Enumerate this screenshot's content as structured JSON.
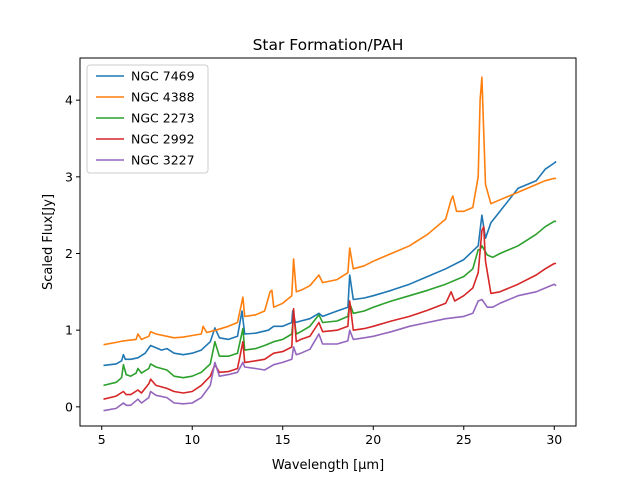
{
  "chart_data": {
    "type": "line",
    "title": "Star Formation/PAH",
    "xlabel": "Wavelength [μm]",
    "ylabel": "Scaled Flux[Jy]",
    "xlim": [
      3.8,
      31.2
    ],
    "ylim": [
      -0.25,
      4.55
    ],
    "xticks": [
      5,
      10,
      15,
      20,
      25,
      30
    ],
    "yticks": [
      0,
      1,
      2,
      3,
      4
    ],
    "grid": false,
    "legend_position": "top-left",
    "series": [
      {
        "name": "NGC 7469",
        "color": "#1f77b4",
        "points": [
          [
            5.1,
            0.54
          ],
          [
            5.8,
            0.56
          ],
          [
            6.1,
            0.6
          ],
          [
            6.2,
            0.68
          ],
          [
            6.3,
            0.62
          ],
          [
            6.6,
            0.62
          ],
          [
            7.0,
            0.64
          ],
          [
            7.4,
            0.7
          ],
          [
            7.7,
            0.8
          ],
          [
            7.9,
            0.78
          ],
          [
            8.3,
            0.74
          ],
          [
            8.6,
            0.76
          ],
          [
            9.0,
            0.7
          ],
          [
            9.5,
            0.68
          ],
          [
            10.0,
            0.7
          ],
          [
            10.5,
            0.74
          ],
          [
            11.0,
            0.85
          ],
          [
            11.25,
            1.03
          ],
          [
            11.5,
            0.9
          ],
          [
            12.0,
            0.88
          ],
          [
            12.5,
            0.92
          ],
          [
            12.75,
            1.25
          ],
          [
            12.9,
            0.95
          ],
          [
            13.5,
            0.96
          ],
          [
            14.2,
            1.0
          ],
          [
            14.5,
            1.05
          ],
          [
            15.0,
            1.05
          ],
          [
            15.5,
            1.1
          ],
          [
            15.55,
            1.25
          ],
          [
            15.7,
            1.1
          ],
          [
            16.0,
            1.12
          ],
          [
            16.5,
            1.15
          ],
          [
            17.0,
            1.22
          ],
          [
            17.2,
            1.18
          ],
          [
            18.0,
            1.25
          ],
          [
            18.6,
            1.3
          ],
          [
            18.7,
            1.72
          ],
          [
            18.9,
            1.4
          ],
          [
            19.5,
            1.42
          ],
          [
            20.0,
            1.45
          ],
          [
            21.0,
            1.52
          ],
          [
            22.0,
            1.6
          ],
          [
            23.0,
            1.7
          ],
          [
            24.0,
            1.8
          ],
          [
            25.0,
            1.92
          ],
          [
            25.8,
            2.1
          ],
          [
            26.0,
            2.5
          ],
          [
            26.2,
            2.2
          ],
          [
            26.5,
            2.4
          ],
          [
            27.0,
            2.55
          ],
          [
            28.0,
            2.85
          ],
          [
            29.0,
            2.95
          ],
          [
            29.5,
            3.1
          ],
          [
            30.0,
            3.18
          ],
          [
            30.1,
            3.2
          ]
        ]
      },
      {
        "name": "NGC 4388",
        "color": "#ff7f0e",
        "points": [
          [
            5.1,
            0.81
          ],
          [
            5.8,
            0.84
          ],
          [
            6.2,
            0.86
          ],
          [
            6.9,
            0.88
          ],
          [
            7.0,
            0.95
          ],
          [
            7.2,
            0.88
          ],
          [
            7.6,
            0.92
          ],
          [
            7.7,
            0.98
          ],
          [
            8.0,
            0.95
          ],
          [
            8.6,
            0.92
          ],
          [
            9.0,
            0.9
          ],
          [
            9.5,
            0.91
          ],
          [
            10.0,
            0.93
          ],
          [
            10.5,
            0.95
          ],
          [
            10.6,
            1.05
          ],
          [
            10.8,
            0.97
          ],
          [
            11.3,
            1.0
          ],
          [
            12.0,
            1.05
          ],
          [
            12.5,
            1.1
          ],
          [
            12.8,
            1.43
          ],
          [
            12.9,
            1.18
          ],
          [
            13.5,
            1.2
          ],
          [
            14.0,
            1.25
          ],
          [
            14.3,
            1.5
          ],
          [
            14.4,
            1.52
          ],
          [
            14.5,
            1.3
          ],
          [
            15.0,
            1.35
          ],
          [
            15.5,
            1.45
          ],
          [
            15.6,
            1.93
          ],
          [
            15.75,
            1.5
          ],
          [
            16.0,
            1.52
          ],
          [
            16.5,
            1.58
          ],
          [
            17.0,
            1.72
          ],
          [
            17.2,
            1.62
          ],
          [
            18.0,
            1.66
          ],
          [
            18.6,
            1.75
          ],
          [
            18.7,
            2.07
          ],
          [
            18.9,
            1.8
          ],
          [
            19.5,
            1.84
          ],
          [
            20.0,
            1.9
          ],
          [
            21.0,
            2.0
          ],
          [
            22.0,
            2.1
          ],
          [
            23.0,
            2.25
          ],
          [
            24.0,
            2.45
          ],
          [
            24.3,
            2.7
          ],
          [
            24.4,
            2.75
          ],
          [
            24.6,
            2.55
          ],
          [
            25.0,
            2.55
          ],
          [
            25.5,
            2.6
          ],
          [
            25.8,
            3.0
          ],
          [
            25.9,
            4.0
          ],
          [
            26.0,
            4.3
          ],
          [
            26.2,
            2.9
          ],
          [
            26.5,
            2.65
          ],
          [
            27.0,
            2.7
          ],
          [
            28.0,
            2.8
          ],
          [
            29.0,
            2.9
          ],
          [
            29.5,
            2.95
          ],
          [
            30.0,
            2.98
          ],
          [
            30.1,
            2.98
          ]
        ]
      },
      {
        "name": "NGC 2273",
        "color": "#2ca02c",
        "points": [
          [
            5.1,
            0.28
          ],
          [
            5.8,
            0.32
          ],
          [
            6.1,
            0.38
          ],
          [
            6.2,
            0.55
          ],
          [
            6.35,
            0.42
          ],
          [
            6.6,
            0.4
          ],
          [
            6.9,
            0.44
          ],
          [
            7.0,
            0.5
          ],
          [
            7.2,
            0.44
          ],
          [
            7.6,
            0.5
          ],
          [
            7.7,
            0.56
          ],
          [
            8.0,
            0.52
          ],
          [
            8.6,
            0.48
          ],
          [
            9.0,
            0.4
          ],
          [
            9.5,
            0.38
          ],
          [
            10.0,
            0.4
          ],
          [
            10.5,
            0.45
          ],
          [
            11.0,
            0.56
          ],
          [
            11.25,
            0.85
          ],
          [
            11.5,
            0.66
          ],
          [
            12.0,
            0.66
          ],
          [
            12.5,
            0.7
          ],
          [
            12.8,
            1.02
          ],
          [
            12.9,
            0.74
          ],
          [
            13.5,
            0.76
          ],
          [
            14.0,
            0.8
          ],
          [
            14.5,
            0.85
          ],
          [
            15.0,
            0.88
          ],
          [
            15.5,
            0.95
          ],
          [
            15.6,
            1.2
          ],
          [
            15.75,
            0.95
          ],
          [
            16.0,
            0.98
          ],
          [
            16.5,
            1.05
          ],
          [
            17.0,
            1.2
          ],
          [
            17.2,
            1.1
          ],
          [
            18.0,
            1.12
          ],
          [
            18.6,
            1.18
          ],
          [
            18.7,
            1.35
          ],
          [
            18.9,
            1.22
          ],
          [
            19.5,
            1.25
          ],
          [
            20.0,
            1.3
          ],
          [
            21.0,
            1.38
          ],
          [
            22.0,
            1.45
          ],
          [
            23.0,
            1.52
          ],
          [
            24.0,
            1.6
          ],
          [
            25.0,
            1.7
          ],
          [
            25.5,
            1.8
          ],
          [
            25.8,
            2.05
          ],
          [
            25.9,
            2.05
          ],
          [
            26.0,
            2.1
          ],
          [
            26.3,
            1.98
          ],
          [
            26.6,
            1.95
          ],
          [
            27.0,
            2.0
          ],
          [
            28.0,
            2.1
          ],
          [
            29.0,
            2.25
          ],
          [
            29.5,
            2.35
          ],
          [
            30.0,
            2.42
          ],
          [
            30.1,
            2.42
          ]
        ]
      },
      {
        "name": "NGC 2992",
        "color": "#d62728",
        "points": [
          [
            5.1,
            0.1
          ],
          [
            5.8,
            0.14
          ],
          [
            6.2,
            0.2
          ],
          [
            6.35,
            0.16
          ],
          [
            6.6,
            0.16
          ],
          [
            7.0,
            0.22
          ],
          [
            7.2,
            0.18
          ],
          [
            7.6,
            0.3
          ],
          [
            7.7,
            0.36
          ],
          [
            8.0,
            0.28
          ],
          [
            8.6,
            0.24
          ],
          [
            9.0,
            0.2
          ],
          [
            9.5,
            0.18
          ],
          [
            10.0,
            0.2
          ],
          [
            10.5,
            0.28
          ],
          [
            11.0,
            0.4
          ],
          [
            11.25,
            0.55
          ],
          [
            11.5,
            0.45
          ],
          [
            12.0,
            0.46
          ],
          [
            12.5,
            0.5
          ],
          [
            12.8,
            0.85
          ],
          [
            12.9,
            0.58
          ],
          [
            13.5,
            0.6
          ],
          [
            14.0,
            0.62
          ],
          [
            14.5,
            0.7
          ],
          [
            15.0,
            0.72
          ],
          [
            15.5,
            0.78
          ],
          [
            15.6,
            1.28
          ],
          [
            15.75,
            0.85
          ],
          [
            16.0,
            0.88
          ],
          [
            16.5,
            0.92
          ],
          [
            17.0,
            1.1
          ],
          [
            17.2,
            0.98
          ],
          [
            18.0,
            1.0
          ],
          [
            18.6,
            1.05
          ],
          [
            18.7,
            1.38
          ],
          [
            18.9,
            1.0
          ],
          [
            19.5,
            1.02
          ],
          [
            20.0,
            1.05
          ],
          [
            21.0,
            1.12
          ],
          [
            22.0,
            1.18
          ],
          [
            23.0,
            1.26
          ],
          [
            24.0,
            1.35
          ],
          [
            24.3,
            1.5
          ],
          [
            24.5,
            1.38
          ],
          [
            25.0,
            1.45
          ],
          [
            25.5,
            1.55
          ],
          [
            25.8,
            1.75
          ],
          [
            26.0,
            2.3
          ],
          [
            26.1,
            2.35
          ],
          [
            26.2,
            1.9
          ],
          [
            26.5,
            1.48
          ],
          [
            27.0,
            1.5
          ],
          [
            28.0,
            1.6
          ],
          [
            29.0,
            1.72
          ],
          [
            29.5,
            1.8
          ],
          [
            30.0,
            1.87
          ],
          [
            30.1,
            1.87
          ]
        ]
      },
      {
        "name": "NGC 3227",
        "color": "#9467bd",
        "points": [
          [
            5.1,
            -0.05
          ],
          [
            5.8,
            -0.02
          ],
          [
            6.2,
            0.05
          ],
          [
            6.35,
            0.02
          ],
          [
            6.6,
            0.02
          ],
          [
            7.0,
            0.1
          ],
          [
            7.2,
            0.05
          ],
          [
            7.6,
            0.12
          ],
          [
            7.7,
            0.2
          ],
          [
            8.0,
            0.15
          ],
          [
            8.6,
            0.12
          ],
          [
            9.0,
            0.05
          ],
          [
            9.5,
            0.04
          ],
          [
            10.0,
            0.05
          ],
          [
            10.5,
            0.12
          ],
          [
            11.0,
            0.28
          ],
          [
            11.25,
            0.58
          ],
          [
            11.5,
            0.4
          ],
          [
            12.0,
            0.42
          ],
          [
            12.5,
            0.45
          ],
          [
            12.8,
            0.58
          ],
          [
            12.9,
            0.52
          ],
          [
            13.5,
            0.5
          ],
          [
            14.0,
            0.48
          ],
          [
            14.5,
            0.55
          ],
          [
            15.0,
            0.58
          ],
          [
            15.5,
            0.62
          ],
          [
            15.6,
            0.78
          ],
          [
            15.75,
            0.68
          ],
          [
            16.0,
            0.7
          ],
          [
            16.5,
            0.75
          ],
          [
            17.0,
            0.95
          ],
          [
            17.2,
            0.82
          ],
          [
            18.0,
            0.82
          ],
          [
            18.6,
            0.86
          ],
          [
            18.7,
            1.0
          ],
          [
            18.9,
            0.88
          ],
          [
            19.5,
            0.9
          ],
          [
            20.0,
            0.92
          ],
          [
            21.0,
            0.98
          ],
          [
            22.0,
            1.05
          ],
          [
            23.0,
            1.1
          ],
          [
            24.0,
            1.15
          ],
          [
            25.0,
            1.18
          ],
          [
            25.5,
            1.22
          ],
          [
            25.8,
            1.38
          ],
          [
            26.0,
            1.4
          ],
          [
            26.3,
            1.3
          ],
          [
            26.6,
            1.3
          ],
          [
            27.0,
            1.35
          ],
          [
            28.0,
            1.45
          ],
          [
            29.0,
            1.5
          ],
          [
            29.5,
            1.55
          ],
          [
            30.0,
            1.6
          ],
          [
            30.1,
            1.58
          ]
        ]
      }
    ]
  }
}
